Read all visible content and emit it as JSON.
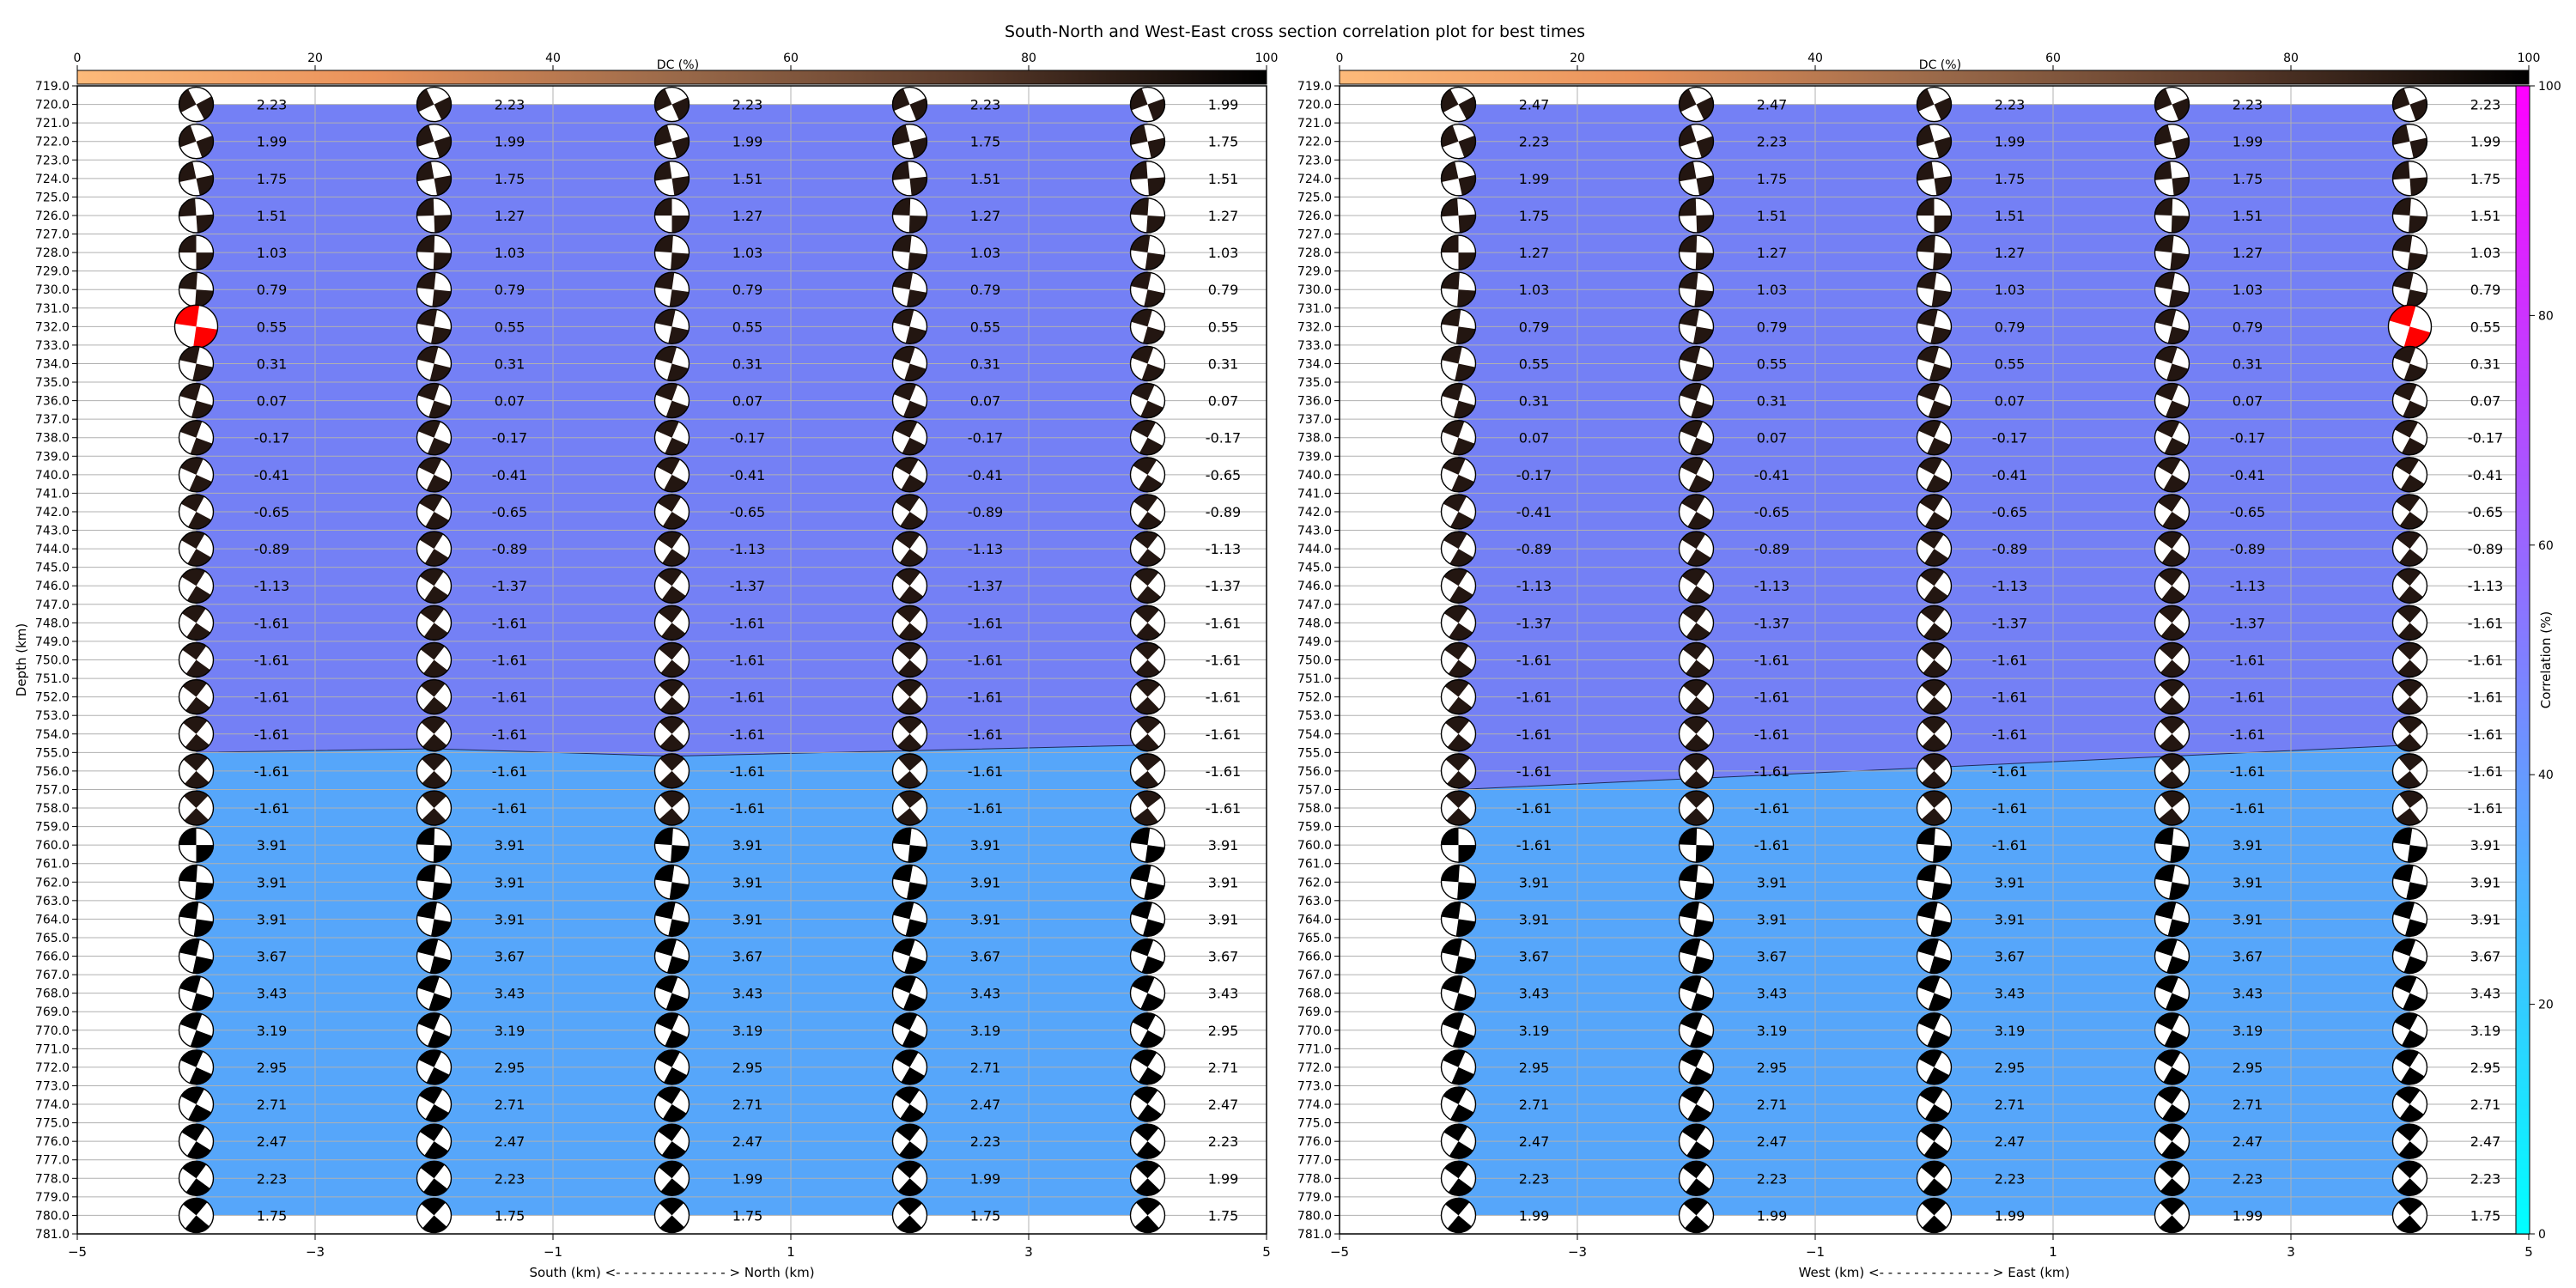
{
  "title": "South-North and West-East cross section correlation plot for best times",
  "colors": {
    "background": "#ffffff",
    "corr_high": "#7480f5",
    "corr_low": "#56a6fa",
    "dc_cmap": [
      "#fdba7a",
      "#e9915a",
      "#9b6a4a",
      "#5a3a2a",
      "#000000"
    ],
    "corr_cmap": [
      "#00ffff",
      "#ff00ff"
    ],
    "beachball_dark": "#231611",
    "beachball_highlight": "#ff0000",
    "grid": "#b0b0b0"
  },
  "chart_data": [
    {
      "type": "heatmap",
      "panel": "South-North",
      "xlabel": "South (km) <- - - - - - - - - - - - - > North (km)",
      "ylabel": "Depth (km)",
      "xlim": [
        -5,
        5
      ],
      "ylim": [
        781,
        719
      ],
      "x_ticks": [
        "−5",
        "−3",
        "−1",
        "1",
        "3",
        "5"
      ],
      "x_tick_values": [
        -5,
        -3,
        -1,
        1,
        3,
        5
      ],
      "grid": true,
      "dc_colorbar": {
        "label": "DC (%)",
        "range": [
          0,
          100
        ],
        "ticks": [
          "0",
          "20",
          "40",
          "60",
          "80",
          "100"
        ]
      },
      "columns_x": [
        -4,
        -2,
        0,
        2,
        4
      ],
      "depths": [
        720,
        722,
        724,
        726,
        728,
        730,
        732,
        734,
        736,
        738,
        740,
        742,
        744,
        746,
        748,
        750,
        752,
        754,
        756,
        758,
        760,
        762,
        764,
        766,
        768,
        770,
        772,
        774,
        776,
        778,
        780
      ],
      "regions": [
        {
          "name": "high",
          "color_key": "corr_high",
          "boundary_depth": [
            755.0,
            754.8,
            755.2,
            754.9,
            754.6
          ]
        },
        {
          "name": "low",
          "color_key": "corr_low"
        }
      ],
      "highlight": {
        "column": 0,
        "depth": 732
      },
      "time_labels": [
        [
          "2.23",
          "1.99",
          "1.75",
          "1.51",
          "1.03",
          "0.79",
          "0.55",
          "0.31",
          "0.07",
          "-0.17",
          "-0.41",
          "-0.65",
          "-0.89",
          "-1.13",
          "-1.61",
          "-1.61",
          "-1.61",
          "-1.61",
          "-1.61",
          "-1.61",
          "3.91",
          "3.91",
          "3.91",
          "3.67",
          "3.43",
          "3.19",
          "2.95",
          "2.71",
          "2.47",
          "2.23",
          "1.75"
        ],
        [
          "2.23",
          "1.99",
          "1.75",
          "1.27",
          "1.03",
          "0.79",
          "0.55",
          "0.31",
          "0.07",
          "-0.17",
          "-0.41",
          "-0.65",
          "-0.89",
          "-1.37",
          "-1.61",
          "-1.61",
          "-1.61",
          "-1.61",
          "-1.61",
          "-1.61",
          "3.91",
          "3.91",
          "3.91",
          "3.67",
          "3.43",
          "3.19",
          "2.95",
          "2.71",
          "2.47",
          "2.23",
          "1.75"
        ],
        [
          "2.23",
          "1.99",
          "1.51",
          "1.27",
          "1.03",
          "0.79",
          "0.55",
          "0.31",
          "0.07",
          "-0.17",
          "-0.41",
          "-0.65",
          "-1.13",
          "-1.37",
          "-1.61",
          "-1.61",
          "-1.61",
          "-1.61",
          "-1.61",
          "-1.61",
          "3.91",
          "3.91",
          "3.91",
          "3.67",
          "3.43",
          "3.19",
          "2.95",
          "2.71",
          "2.47",
          "1.99",
          "1.75"
        ],
        [
          "2.23",
          "1.75",
          "1.51",
          "1.27",
          "1.03",
          "0.79",
          "0.55",
          "0.31",
          "0.07",
          "-0.17",
          "-0.41",
          "-0.89",
          "-1.13",
          "-1.37",
          "-1.61",
          "-1.61",
          "-1.61",
          "-1.61",
          "-1.61",
          "-1.61",
          "3.91",
          "3.91",
          "3.91",
          "3.67",
          "3.43",
          "3.19",
          "2.71",
          "2.47",
          "2.23",
          "1.99",
          "1.75"
        ],
        [
          "1.99",
          "1.75",
          "1.51",
          "1.27",
          "1.03",
          "0.79",
          "0.55",
          "0.31",
          "0.07",
          "-0.17",
          "-0.65",
          "-0.89",
          "-1.13",
          "-1.37",
          "-1.61",
          "-1.61",
          "-1.61",
          "-1.61",
          "-1.61",
          "-1.61",
          "3.91",
          "3.91",
          "3.91",
          "3.67",
          "3.43",
          "2.95",
          "2.71",
          "2.47",
          "2.23",
          "1.99",
          "1.75"
        ]
      ]
    },
    {
      "type": "heatmap",
      "panel": "West-East",
      "xlabel": "West (km) <- - - - - - - - - - - - - > East (km)",
      "ylabel": "",
      "xlim": [
        -5,
        5
      ],
      "ylim": [
        781,
        719
      ],
      "x_ticks": [
        "−5",
        "−3",
        "−1",
        "1",
        "3",
        "5"
      ],
      "x_tick_values": [
        -5,
        -3,
        -1,
        1,
        3,
        5
      ],
      "grid": true,
      "dc_colorbar": {
        "label": "DC (%)",
        "range": [
          0,
          100
        ],
        "ticks": [
          "0",
          "20",
          "40",
          "60",
          "80",
          "100"
        ]
      },
      "corr_colorbar": {
        "label": "Correlation (%)",
        "range": [
          0,
          100
        ],
        "ticks": [
          "0",
          "20",
          "40",
          "60",
          "80",
          "100"
        ]
      },
      "columns_x": [
        -4,
        -2,
        0,
        2,
        4
      ],
      "depths": [
        720,
        722,
        724,
        726,
        728,
        730,
        732,
        734,
        736,
        738,
        740,
        742,
        744,
        746,
        748,
        750,
        752,
        754,
        756,
        758,
        760,
        762,
        764,
        766,
        768,
        770,
        772,
        774,
        776,
        778,
        780
      ],
      "regions": [
        {
          "name": "high",
          "color_key": "corr_high",
          "boundary_depth": [
            757.0,
            756.4,
            755.8,
            755.2,
            754.6
          ]
        },
        {
          "name": "low",
          "color_key": "corr_low"
        }
      ],
      "highlight": {
        "column": 4,
        "depth": 732
      },
      "time_labels": [
        [
          "2.47",
          "2.23",
          "1.99",
          "1.75",
          "1.27",
          "1.03",
          "0.79",
          "0.55",
          "0.31",
          "0.07",
          "-0.17",
          "-0.41",
          "-0.89",
          "-1.13",
          "-1.37",
          "-1.61",
          "-1.61",
          "-1.61",
          "-1.61",
          "-1.61",
          "-1.61",
          "3.91",
          "3.91",
          "3.67",
          "3.43",
          "3.19",
          "2.95",
          "2.71",
          "2.47",
          "2.23",
          "1.99"
        ],
        [
          "2.47",
          "2.23",
          "1.75",
          "1.51",
          "1.27",
          "1.03",
          "0.79",
          "0.55",
          "0.31",
          "0.07",
          "-0.41",
          "-0.65",
          "-0.89",
          "-1.13",
          "-1.37",
          "-1.61",
          "-1.61",
          "-1.61",
          "-1.61",
          "-1.61",
          "-1.61",
          "3.91",
          "3.91",
          "3.67",
          "3.43",
          "3.19",
          "2.95",
          "2.71",
          "2.47",
          "2.23",
          "1.99"
        ],
        [
          "2.23",
          "1.99",
          "1.75",
          "1.51",
          "1.27",
          "1.03",
          "0.79",
          "0.55",
          "0.07",
          "-0.17",
          "-0.41",
          "-0.65",
          "-0.89",
          "-1.13",
          "-1.37",
          "-1.61",
          "-1.61",
          "-1.61",
          "-1.61",
          "-1.61",
          "-1.61",
          "3.91",
          "3.91",
          "3.67",
          "3.43",
          "3.19",
          "2.95",
          "2.71",
          "2.47",
          "2.23",
          "1.99"
        ],
        [
          "2.23",
          "1.99",
          "1.75",
          "1.51",
          "1.27",
          "1.03",
          "0.79",
          "0.31",
          "0.07",
          "-0.17",
          "-0.41",
          "-0.65",
          "-0.89",
          "-1.13",
          "-1.37",
          "-1.61",
          "-1.61",
          "-1.61",
          "-1.61",
          "-1.61",
          "3.91",
          "3.91",
          "3.91",
          "3.67",
          "3.43",
          "3.19",
          "2.95",
          "2.71",
          "2.47",
          "2.23",
          "1.99"
        ],
        [
          "2.23",
          "1.99",
          "1.75",
          "1.51",
          "1.03",
          "0.79",
          "0.55",
          "0.31",
          "0.07",
          "-0.17",
          "-0.41",
          "-0.65",
          "-0.89",
          "-1.13",
          "-1.61",
          "-1.61",
          "-1.61",
          "-1.61",
          "-1.61",
          "-1.61",
          "3.91",
          "3.91",
          "3.91",
          "3.67",
          "3.43",
          "3.19",
          "2.95",
          "2.71",
          "2.47",
          "2.23",
          "1.75"
        ]
      ]
    }
  ]
}
